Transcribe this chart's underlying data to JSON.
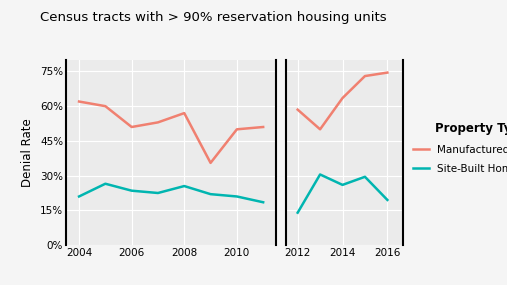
{
  "title": "Census tracts with > 90% reservation housing units",
  "ylabel": "Denial Rate",
  "background_color": "#f5f5f5",
  "plot_bg_color": "#ebebeb",
  "manufactured_color": "#f08070",
  "sitebuilt_color": "#00b5b0",
  "panel1_years": [
    2004,
    2005,
    2006,
    2007,
    2008,
    2009,
    2010,
    2011
  ],
  "panel1_manufactured": [
    0.62,
    0.6,
    0.51,
    0.53,
    0.57,
    0.355,
    0.5,
    0.51
  ],
  "panel1_sitebuilt": [
    0.21,
    0.265,
    0.235,
    0.225,
    0.255,
    0.22,
    0.21,
    0.185
  ],
  "panel2_years": [
    2012,
    2013,
    2014,
    2015,
    2016
  ],
  "panel2_manufactured": [
    0.585,
    0.5,
    0.635,
    0.73,
    0.745
  ],
  "panel2_sitebuilt": [
    0.14,
    0.305,
    0.26,
    0.295,
    0.195
  ],
  "yticks": [
    0.0,
    0.15,
    0.3,
    0.45,
    0.6,
    0.75
  ],
  "ytick_labels": [
    "0%",
    "15%",
    "30%",
    "45%",
    "60%",
    "75%"
  ],
  "legend_title": "Property Type",
  "legend_label1": "Manufactured Homes",
  "legend_label2": "Site-Built Homes",
  "line_width": 1.8
}
